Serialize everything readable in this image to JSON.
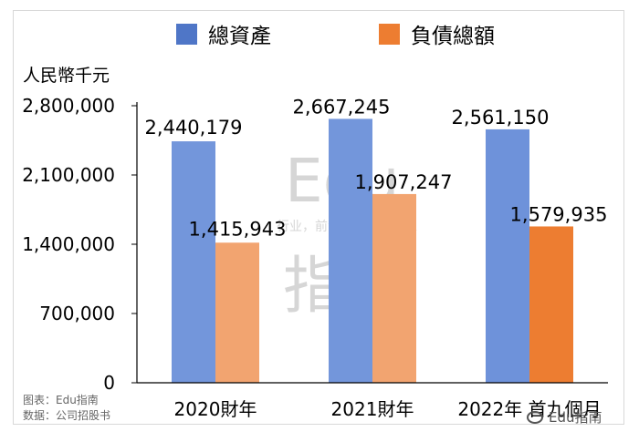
{
  "chart_data": {
    "type": "bar",
    "unit_label": "人民幣千元",
    "categories": [
      "2020財年",
      "2021財年",
      "2022年 首九個月"
    ],
    "series": [
      {
        "name": "總資產",
        "values": [
          2440179,
          2667245,
          2561150
        ],
        "color": "#4F76C7"
      },
      {
        "name": "負債總額",
        "values": [
          1415943,
          1907247,
          1579935
        ],
        "color": "#ED7D31"
      }
    ],
    "value_labels": [
      [
        "2,440,179",
        "2,667,245",
        "2,561,150"
      ],
      [
        "1,415,943",
        "1,907,247",
        "1,579,935"
      ]
    ],
    "yticks": [
      "0",
      "700,000",
      "1,400,000",
      "2,100,000",
      "2,800,000"
    ],
    "ylim": [
      0,
      2800000
    ],
    "legend_position": "top",
    "grid": false
  },
  "source": {
    "chart_credit": "图表：Edu指南",
    "data_credit": "数据：公司招股书"
  },
  "watermark": {
    "brand": "Edu",
    "tagline": "行业，前沿、深度、独家",
    "brand_cn": "指南"
  },
  "footer_badge": "Edu指南"
}
